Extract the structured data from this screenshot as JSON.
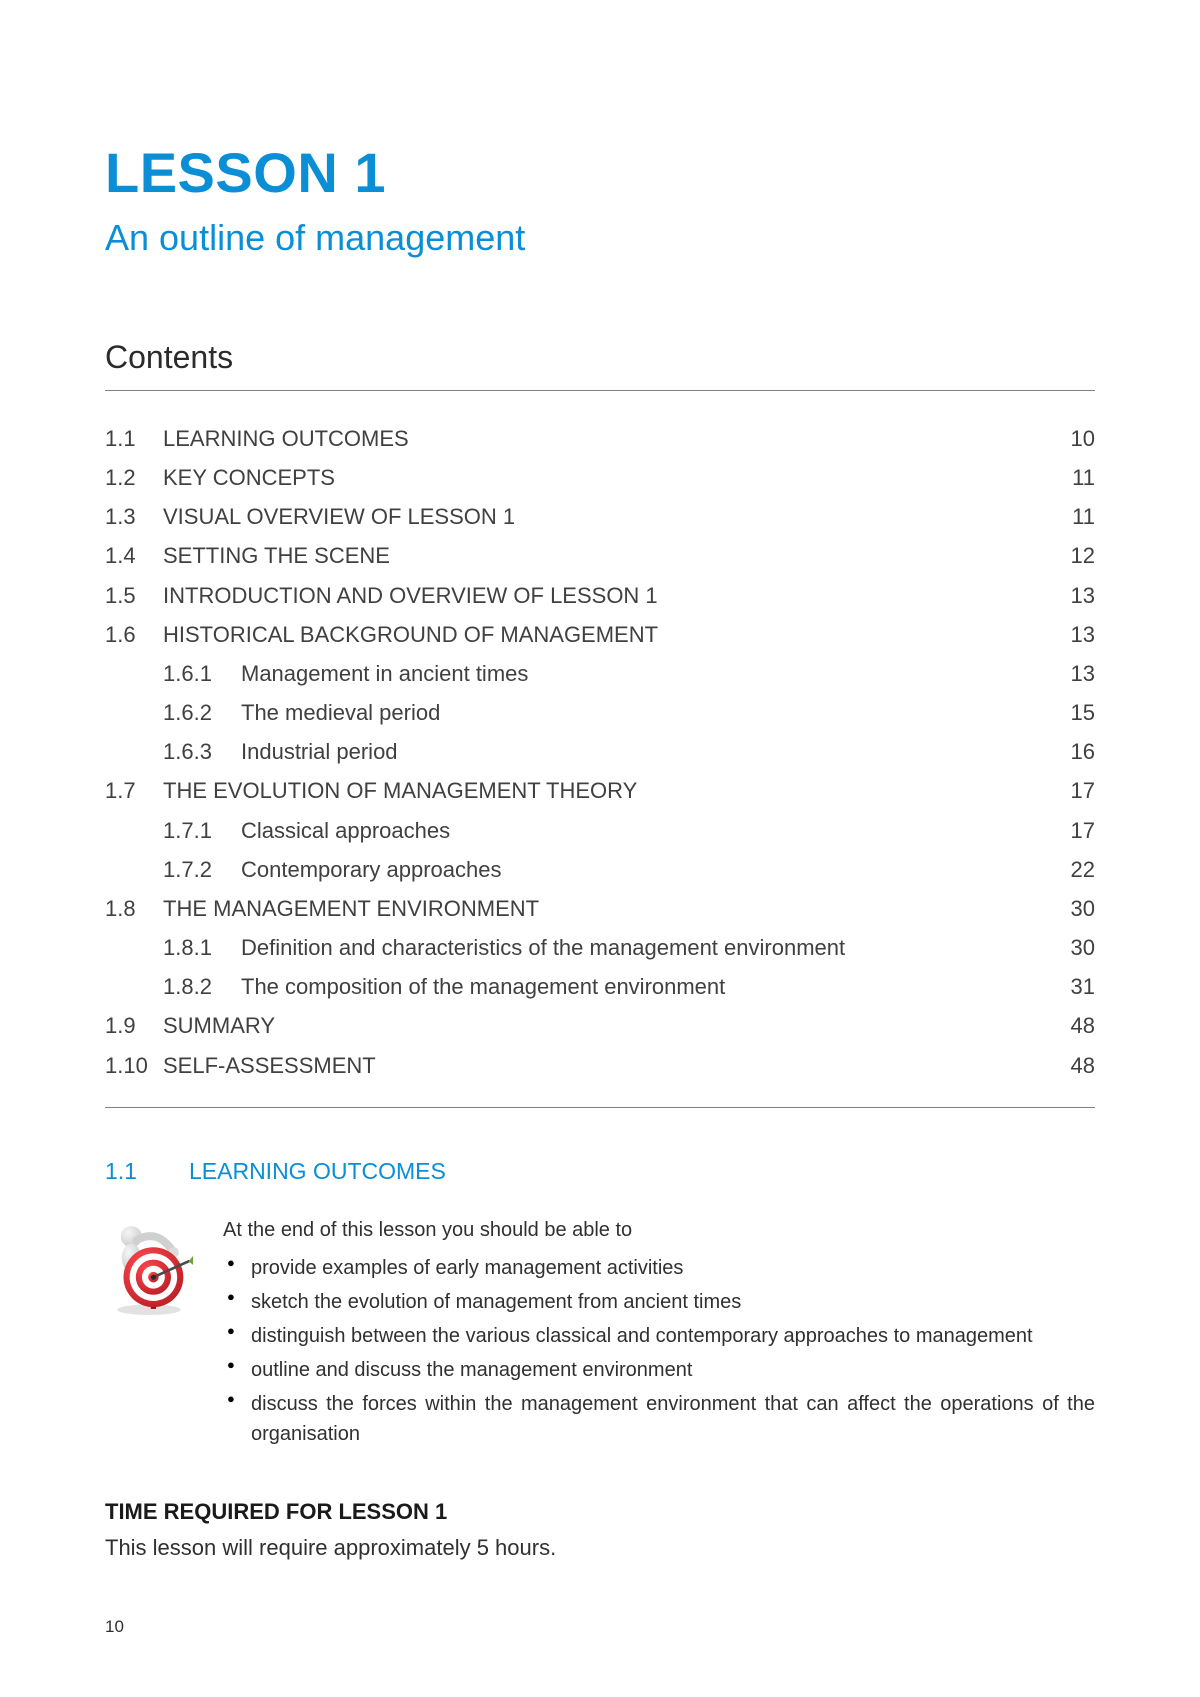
{
  "colors": {
    "accent": "#0a8fd6",
    "text": "#2b2b2b",
    "toc_text": "#404040",
    "rule": "#808080",
    "target_red": "#d82128",
    "target_dark": "#a01016",
    "figure_gray": "#d9d9d9",
    "figure_shadow": "#b0b0b0"
  },
  "header": {
    "lesson_title": "LESSON 1",
    "lesson_subtitle": "An outline of management"
  },
  "contents": {
    "heading": "Contents",
    "entries": [
      {
        "num": "1.1",
        "title": "LEARNING OUTCOMES",
        "page": "10"
      },
      {
        "num": "1.2",
        "title": "KEY CONCEPTS",
        "page": "11"
      },
      {
        "num": "1.3",
        "title": "VISUAL OVERVIEW OF LESSON 1",
        "page": "11"
      },
      {
        "num": "1.4",
        "title": "SETTING THE SCENE",
        "page": "12"
      },
      {
        "num": "1.5",
        "title": "INTRODUCTION AND OVERVIEW OF LESSON 1",
        "page": "13"
      },
      {
        "num": "1.6",
        "title": "HISTORICAL BACKGROUND OF MANAGEMENT",
        "page": "13",
        "children": [
          {
            "num": "1.6.1",
            "title": "Management in ancient times",
            "page": "13"
          },
          {
            "num": "1.6.2",
            "title": "The medieval period",
            "page": "15"
          },
          {
            "num": "1.6.3",
            "title": "Industrial period",
            "page": "16"
          }
        ]
      },
      {
        "num": "1.7",
        "title": "THE EVOLUTION OF MANAGEMENT THEORY",
        "page": "17",
        "children": [
          {
            "num": "1.7.1",
            "title": "Classical approaches",
            "page": "17"
          },
          {
            "num": "1.7.2",
            "title": "Contemporary approaches",
            "page": "22"
          }
        ]
      },
      {
        "num": "1.8",
        "title": "THE MANAGEMENT ENVIRONMENT",
        "page": "30",
        "children": [
          {
            "num": "1.8.1",
            "title": "Definition and characteristics of the management environment",
            "page": "30"
          },
          {
            "num": "1.8.2",
            "title": "The composition of the management environment",
            "page": "31"
          }
        ]
      },
      {
        "num": "1.9",
        "title": "SUMMARY",
        "page": "48"
      },
      {
        "num": "1.10",
        "title": "SELF-ASSESSMENT",
        "page": "48"
      }
    ]
  },
  "section_1_1": {
    "num": "1.1",
    "heading": "LEARNING OUTCOMES",
    "intro": "At the end of this lesson you should be able to",
    "bullets": [
      "provide examples of early management activities",
      "sketch the evolution of management from ancient times",
      "distinguish between the various classical and contemporary approaches to management",
      "outline and discuss the management environment",
      "discuss the forces within the management environment that can affect the operations of the organisation"
    ],
    "icon_name": "target-icon"
  },
  "time": {
    "heading": "TIME REQUIRED FOR LESSON 1",
    "body": "This lesson will require approximately 5 hours."
  },
  "page_number": "10",
  "typography": {
    "title_fontsize": 56,
    "subtitle_fontsize": 36,
    "contents_heading_fontsize": 32,
    "toc_fontsize": 22,
    "section_heading_fontsize": 23,
    "body_fontsize": 20
  }
}
